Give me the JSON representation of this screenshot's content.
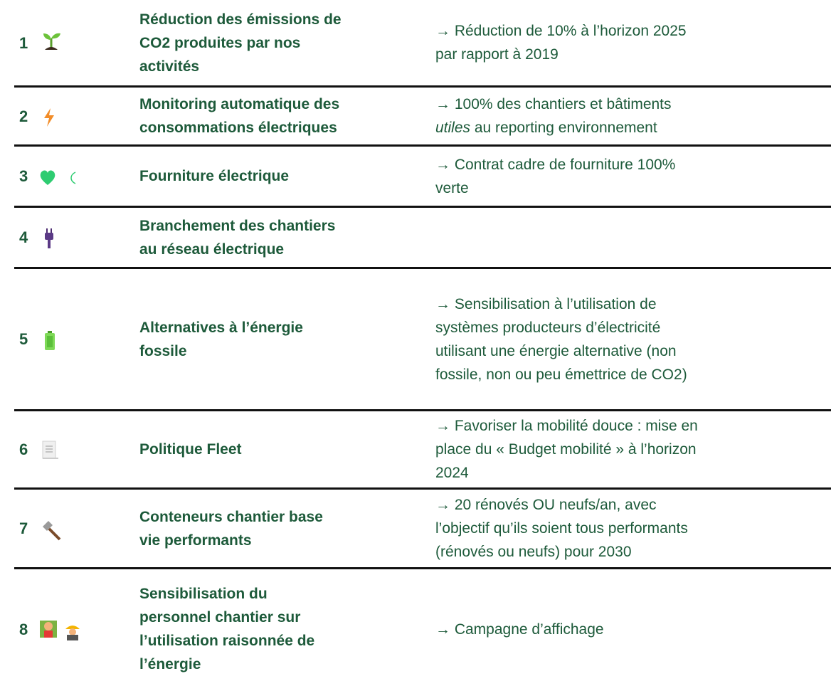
{
  "rows": [
    {
      "number": "1",
      "title": [
        "Réduction des émissions de",
        "CO2 produites par nos",
        "activités"
      ],
      "description": [
        "→ Réduction de 10% à l’horizon 2025",
        "par rapport à 2019"
      ]
    },
    {
      "number": "2",
      "title": [
        "Monitoring automatique des",
        "consommations électriques"
      ],
      "description": [
        "→ 100% des chantiers et bâtiments",
        [
          "utiles",
          " au reporting environnement"
        ]
      ]
    },
    {
      "number": "3",
      "title": [
        "Fourniture électrique"
      ],
      "description": [
        "→ Contrat cadre de fourniture 100%",
        "verte"
      ]
    },
    {
      "number": "4",
      "title": [
        "Branchement des chantiers",
        "au réseau électrique"
      ],
      "description": []
    },
    {
      "number": "5",
      "title": [
        "Alternatives à l’énergie",
        "fossile"
      ],
      "description": [
        "→ Sensibilisation à l’utilisation de",
        "systèmes producteurs d’électricité",
        "utilisant une énergie alternative (non",
        "fossile, non ou peu émettrice de CO2)"
      ]
    },
    {
      "number": "6",
      "title": [
        "Politique Fleet"
      ],
      "description": [
        "→ Favoriser la mobilité douce : mise en",
        "place du « Budget mobilité » à l’horizon",
        "2024"
      ]
    },
    {
      "number": "7",
      "title": [
        "Conteneurs chantier base",
        "vie performants"
      ],
      "description": [
        "→ 20 rénovés OU neufs/an, avec",
        "l’objectif qu’ils soient tous performants",
        "(rénovés ou neufs) pour 2030"
      ]
    },
    {
      "number": "8",
      "title": [
        "Sensibilisation du",
        "personnel chantier sur",
        "l’utilisation raisonnée de",
        "l’énergie"
      ],
      "description": [
        "→ Campagne d’affichage"
      ]
    }
  ]
}
